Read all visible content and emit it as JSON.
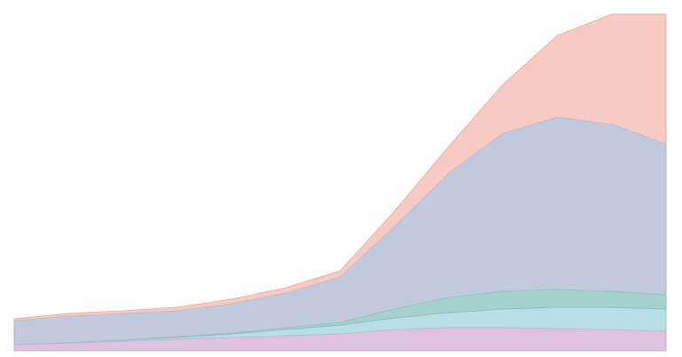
{
  "chart_data": {
    "type": "stacked_area",
    "x": [
      0,
      1,
      2,
      3,
      4,
      5,
      6,
      7,
      8,
      9,
      10,
      11,
      12
    ],
    "xlim": [
      0,
      12
    ],
    "ylim": [
      0,
      379
    ],
    "series": [
      {
        "color": "#dfc2de",
        "values": [
          7,
          9,
          11,
          13,
          15,
          17,
          19,
          24,
          26,
          26,
          25,
          24,
          22
        ]
      },
      {
        "color": "#b7dfe6",
        "values": [
          0,
          0,
          1,
          2,
          4,
          7,
          10,
          13,
          17,
          21,
          24,
          25,
          25
        ]
      },
      {
        "color": "#a3d3cc",
        "values": [
          0,
          0,
          0,
          1,
          1,
          2,
          3,
          10,
          17,
          20,
          20,
          18,
          16
        ]
      },
      {
        "color": "#c2cadd",
        "values": [
          27,
          30,
          30,
          29,
          33,
          39,
          51,
          93,
          140,
          178,
          194,
          188,
          170
        ]
      },
      {
        "color": "#f7cbc4",
        "values": [
          2,
          3,
          3,
          4,
          5,
          6,
          7,
          17,
          30,
          55,
          92,
          124,
          146
        ]
      }
    ]
  }
}
